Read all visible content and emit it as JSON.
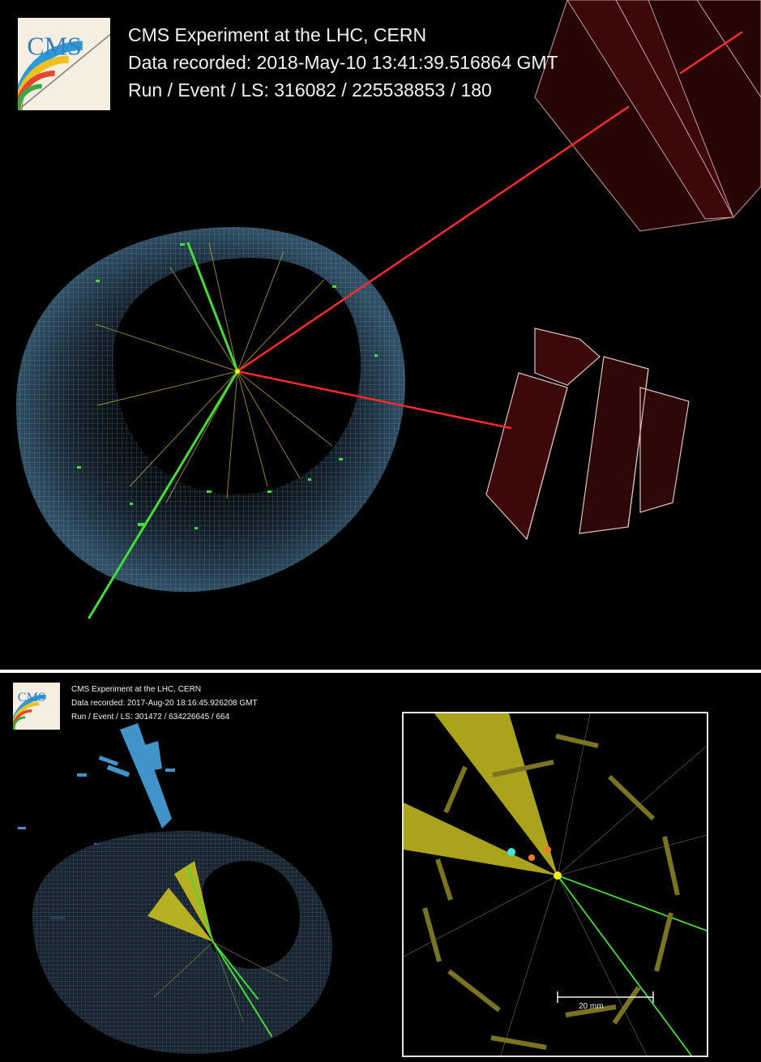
{
  "top_event": {
    "experiment": "CMS Experiment at the LHC, CERN",
    "recorded": "Data recorded: 2018-May-10 13:41:39.516864 GMT",
    "run_event_ls": "Run / Event / LS: 316082 / 225538853 / 180"
  },
  "bottom_event": {
    "experiment": "CMS Experiment at the LHC, CERN",
    "recorded": "Data recorded: 2017-Aug-20 18:16:45.926208 GMT",
    "run_event_ls": "Run / Event / LS: 301472 / 634226645 / 664"
  },
  "logo": {
    "text": "CMS"
  },
  "inset": {
    "scale_bar_label": "20 mm"
  },
  "colors": {
    "background": "#000000",
    "muon_track": "#ff2a2a",
    "electron_track": "#44dd33",
    "jet_cone": "#b8b020",
    "calorimeter": "#7aa6c8",
    "muon_chamber": "#3a0a0a"
  }
}
